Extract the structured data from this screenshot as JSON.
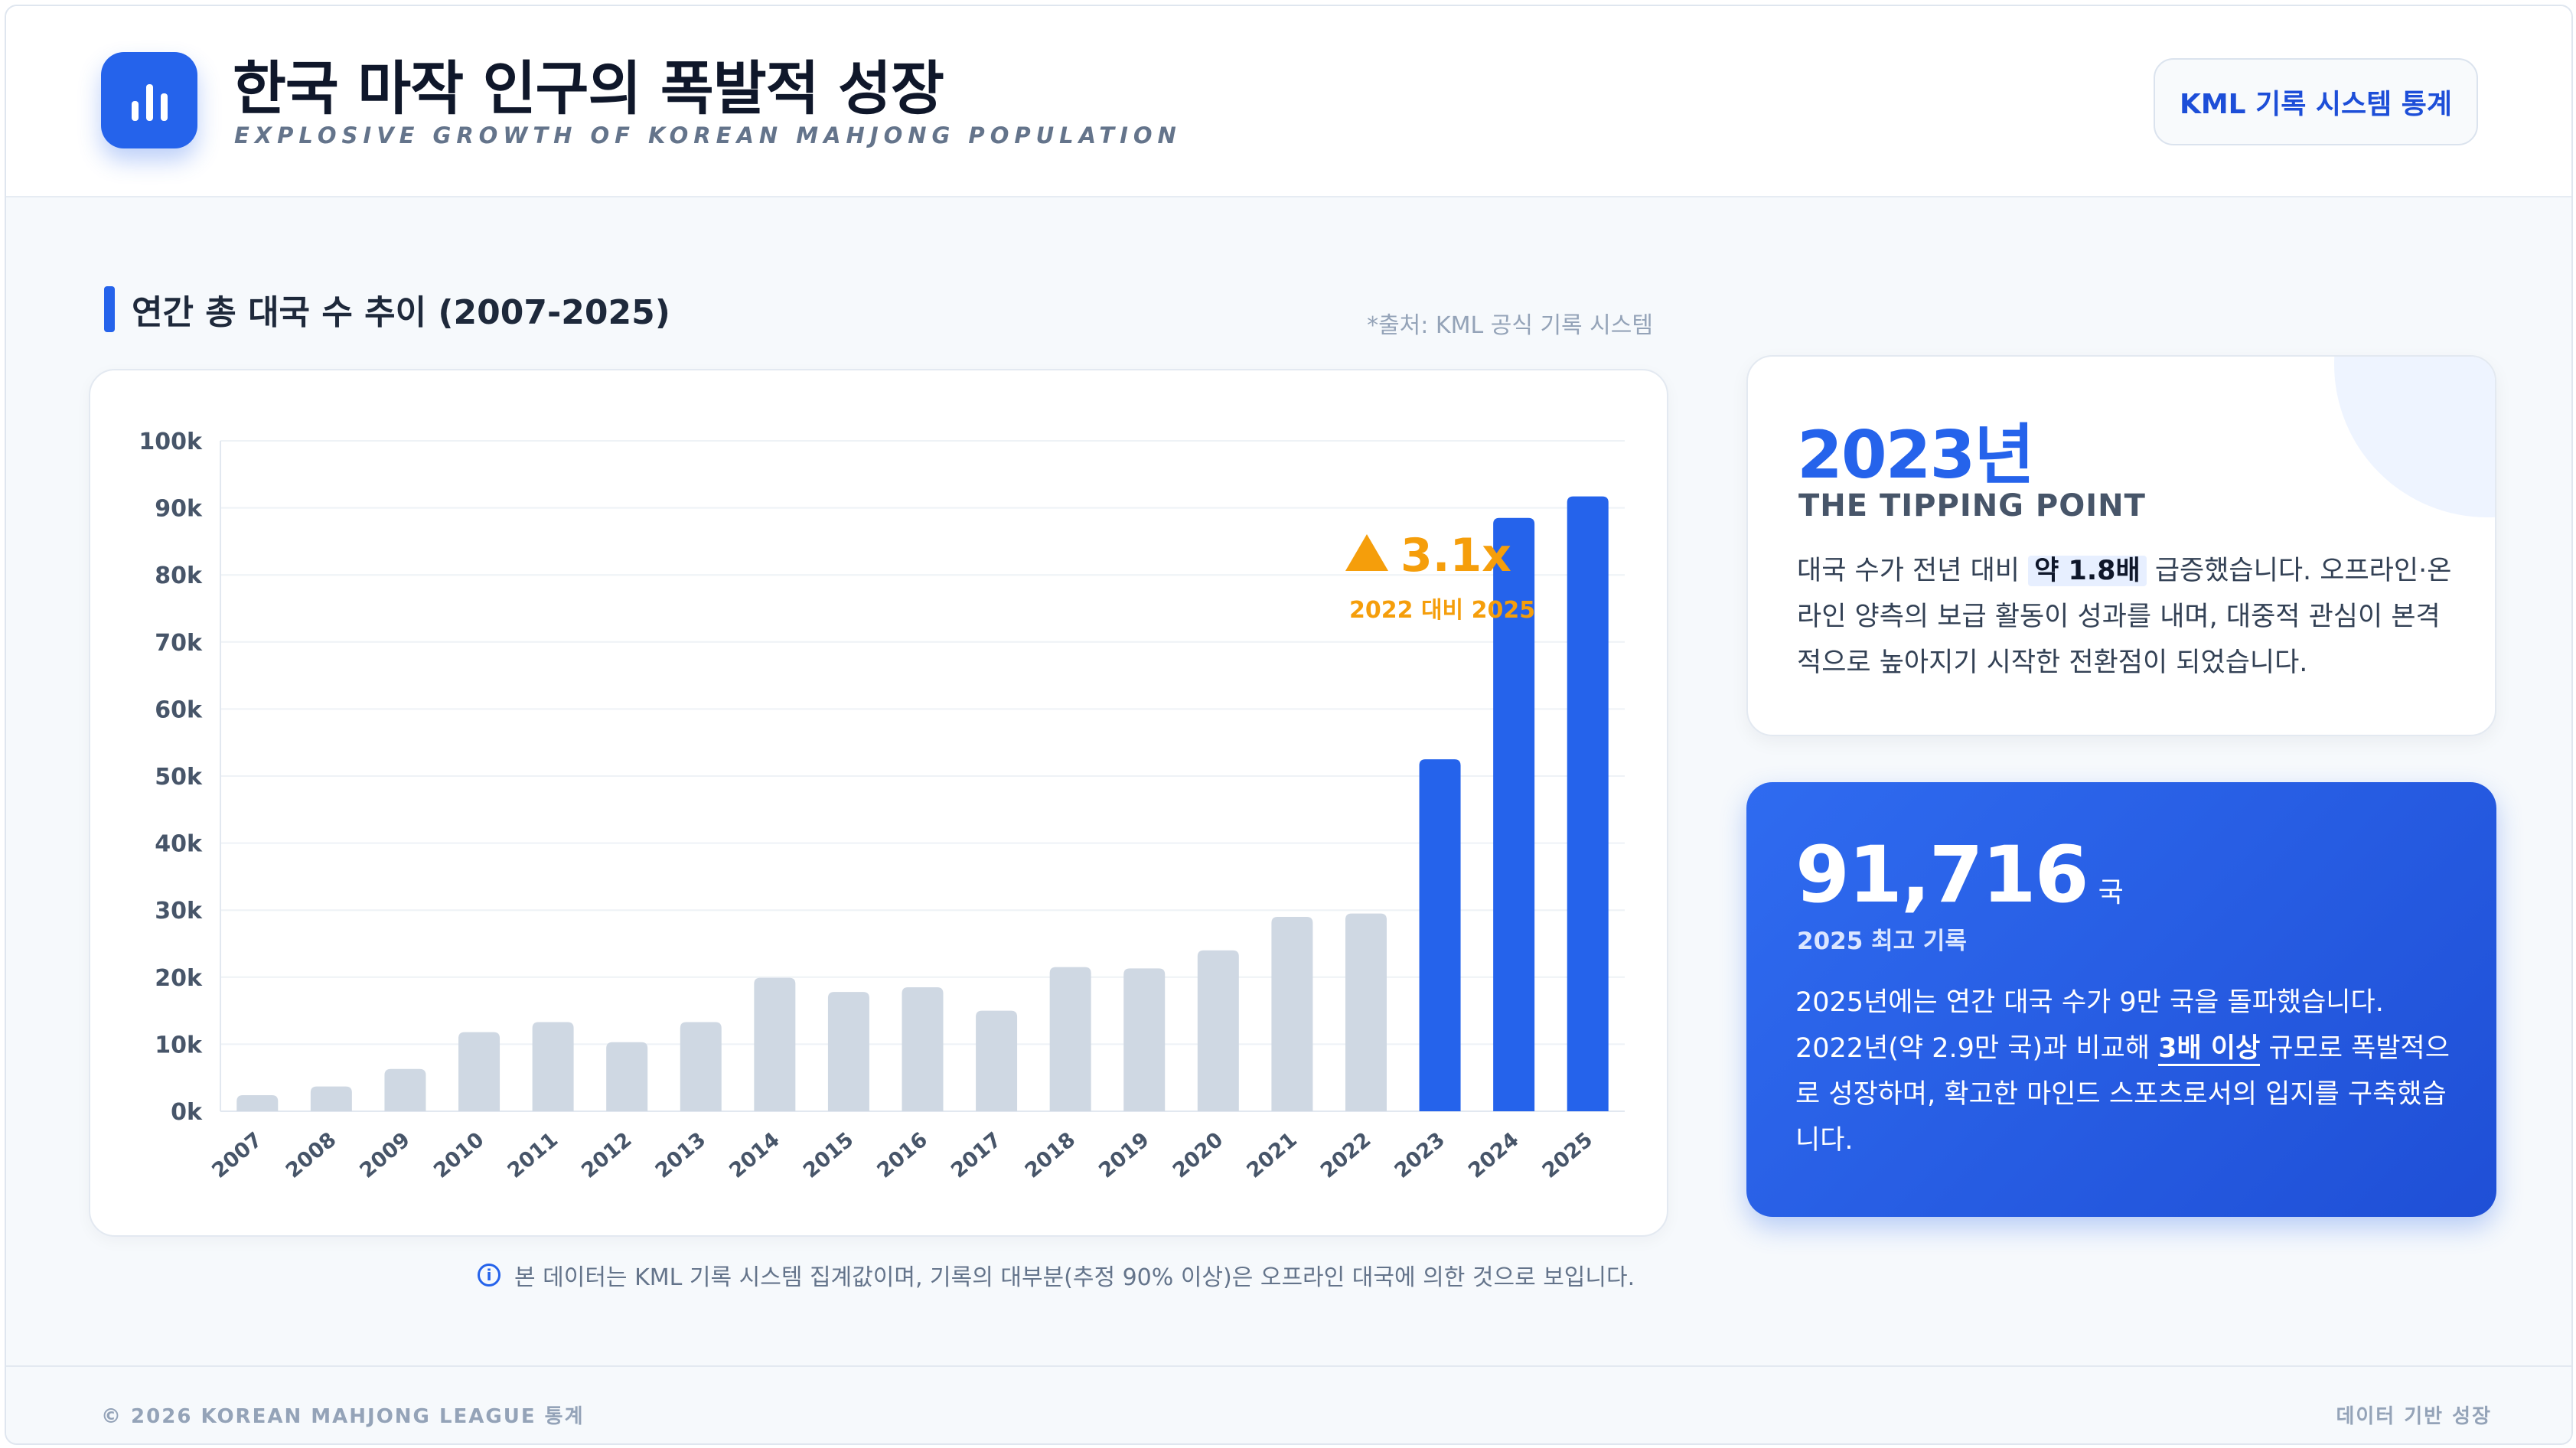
{
  "header": {
    "title": "한국 마작 인구의 폭발적 성장",
    "subtitle": "EXPLOSIVE GROWTH OF KOREAN MAHJONG POPULATION",
    "badge": "KML 기록 시스템 통계",
    "logo_icon": "bar-chart-icon"
  },
  "section": {
    "title": "연간 총 대국 수 추이 (2007-2025)",
    "source": "*출처: KML 공식 기록 시스템"
  },
  "chart_data": {
    "type": "bar",
    "categories": [
      "2007",
      "2008",
      "2009",
      "2010",
      "2011",
      "2012",
      "2013",
      "2014",
      "2015",
      "2016",
      "2017",
      "2018",
      "2019",
      "2020",
      "2021",
      "2022",
      "2023",
      "2024",
      "2025"
    ],
    "values": [
      2400,
      3700,
      6300,
      11800,
      13300,
      10300,
      13300,
      19900,
      17800,
      18500,
      15000,
      21500,
      21300,
      24000,
      29000,
      29500,
      52500,
      88500,
      91716
    ],
    "highlight_from": "2023",
    "ylim": [
      0,
      100000
    ],
    "yticks": [
      0,
      10000,
      20000,
      30000,
      40000,
      50000,
      60000,
      70000,
      80000,
      90000,
      100000
    ],
    "ytick_labels": [
      "0k",
      "10k",
      "20k",
      "30k",
      "40k",
      "50k",
      "60k",
      "70k",
      "80k",
      "90k",
      "100k"
    ],
    "grid": true,
    "colors": {
      "base": "#cfd8e3",
      "highlight": "#2563eb",
      "annotation": "#f59e0b"
    },
    "annotation": {
      "value": "3.1x",
      "label": "2022 대비 2025"
    }
  },
  "note": "본 데이터는 KML 기록 시스템 집계값이며, 기록의 대부분(추정 90% 이상)은 오프라인 대국에 의한 것으로 보입니다.",
  "card_tipping": {
    "year": "2023년",
    "heading": "THE TIPPING POINT",
    "body_pre": "대국 수가 전년 대비 ",
    "highlight": "약 1.8배",
    "body_post": " 급증했습니다. 오프라인·온라인 양측의 보급 활동이 성과를 내며, 대중적 관심이 본격적으로 높아지기 시작한 전환점이 되었습니다."
  },
  "card_record": {
    "value": "91,716",
    "unit": "국",
    "label": "2025 최고 기록",
    "body_pre": "2025년에는 연간 대국 수가 9만 국을 돌파했습니다. 2022년(약 2.9만 국)과 비교해 ",
    "highlight": "3배 이상",
    "body_post": " 규모로 폭발적으로 성장하며, 확고한 마인드 스포츠로서의 입지를 구축했습니다."
  },
  "footer": {
    "left": "© 2026 KOREAN MAHJONG LEAGUE 통계",
    "right": "데이터 기반 성장"
  }
}
